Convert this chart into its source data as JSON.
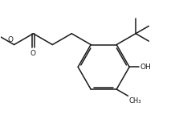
{
  "bg_color": "#ffffff",
  "line_color": "#1a1a1a",
  "line_width": 1.1,
  "font_size": 6.5,
  "fig_width": 2.23,
  "fig_height": 1.48,
  "dpi": 100,
  "xlim": [
    0,
    10
  ],
  "ylim": [
    0,
    6.64
  ]
}
